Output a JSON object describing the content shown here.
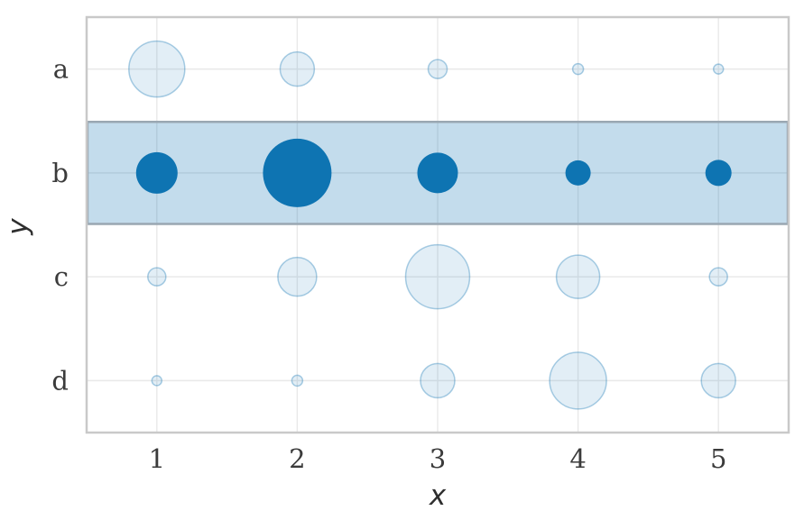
{
  "chart_data": {
    "type": "scatter",
    "subtype": "bubble-matrix",
    "title": "",
    "xlabel": "x",
    "ylabel": "y",
    "x_values": [
      1,
      2,
      3,
      4,
      5
    ],
    "x_tick_labels": [
      "1",
      "2",
      "3",
      "4",
      "5"
    ],
    "y_categories": [
      "a",
      "b",
      "c",
      "d"
    ],
    "y_tick_labels": [
      "a",
      "b",
      "c",
      "d"
    ],
    "highlighted_category": "b",
    "grid": true,
    "legend_position": "none",
    "x_range": [
      0.5,
      5.5
    ],
    "series": [
      {
        "name": "a",
        "highlighted": false,
        "radius_px": [
          31,
          19,
          10.5,
          6,
          5.5
        ]
      },
      {
        "name": "b",
        "highlighted": true,
        "radius_px": [
          23,
          38,
          22.5,
          14,
          14.5
        ]
      },
      {
        "name": "c",
        "highlighted": false,
        "radius_px": [
          10,
          21.5,
          35.5,
          24,
          10
        ]
      },
      {
        "name": "d",
        "highlighted": false,
        "radius_px": [
          5.5,
          6,
          19,
          31.5,
          19
        ]
      }
    ]
  },
  "colors": {
    "background": "#ffffff",
    "highlight_bubble": "#0e74b2",
    "muted_bubble_fill": "rgba(14,116,178,0.12)",
    "muted_bubble_stroke": "rgba(14,116,178,0.35)",
    "band_fill": "rgba(14,116,178,0.25)",
    "band_stroke": "#9aa7b2",
    "grid_line": "#e9e9e9",
    "plot_border": "#c9c9c9",
    "text": "#3b3b3b"
  }
}
